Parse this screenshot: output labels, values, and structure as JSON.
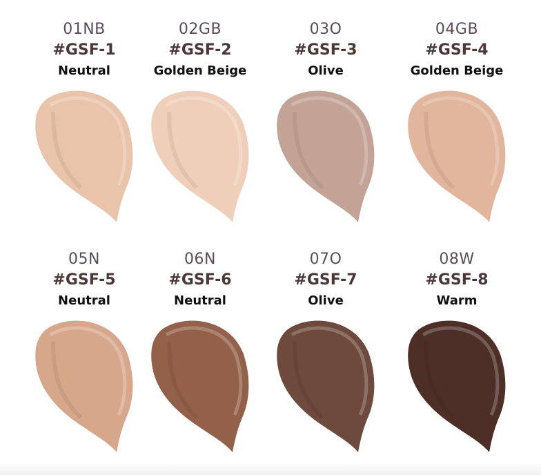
{
  "shades": [
    {
      "code": "01NB",
      "number": "#GSF-1",
      "undertone": "Neutral",
      "color": "#e9c4aa"
    },
    {
      "code": "02GB",
      "number": "#GSF-2",
      "undertone": "Golden Beige",
      "color": "#efcfba"
    },
    {
      "code": "03O",
      "number": "#GSF-3",
      "undertone": "Olive",
      "color": "#c3a396"
    },
    {
      "code": "04GB",
      "number": "#GSF-4",
      "undertone": "Golden Beige",
      "color": "#e1b69c"
    },
    {
      "code": "05N",
      "number": "#GSF-5",
      "undertone": "Neutral",
      "color": "#d7a78c"
    },
    {
      "code": "06N",
      "number": "#GSF-6",
      "undertone": "Neutral",
      "color": "#93604a"
    },
    {
      "code": "07O",
      "number": "#GSF-7",
      "undertone": "Olive",
      "color": "#6d4a3c"
    },
    {
      "code": "08W",
      "number": "#GSF-8",
      "undertone": "Warm",
      "color": "#4d2f27"
    }
  ]
}
